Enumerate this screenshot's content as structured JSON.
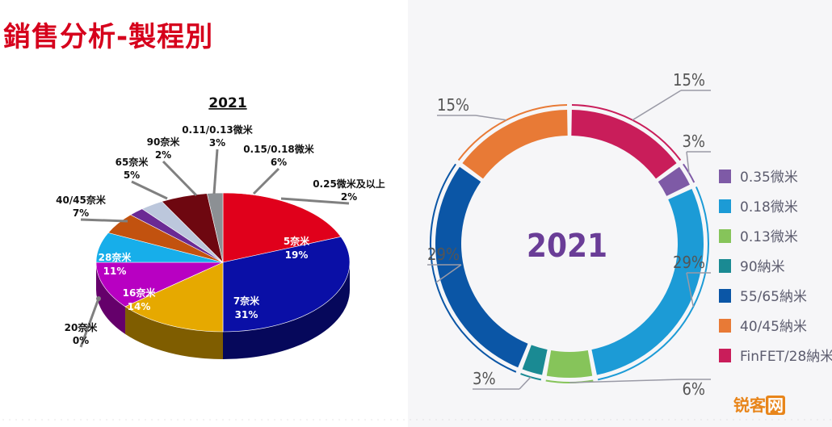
{
  "page_title": "銷售分析-製程別",
  "watermark": {
    "part1": "锐客",
    "part2": "网"
  },
  "chart_data": [
    {
      "type": "pie",
      "title": "2021",
      "categories": [
        "5奈米",
        "7奈米",
        "16奈米",
        "20奈米",
        "28奈米",
        "40/45奈米",
        "65奈米",
        "90奈米",
        "0.11/0.13微米",
        "0.15/0.18微米",
        "0.25微米及以上"
      ],
      "values": [
        19,
        31,
        14,
        0,
        11,
        7,
        5,
        2,
        3,
        6,
        2
      ],
      "value_labels": [
        "19%",
        "31%",
        "14%",
        "0%",
        "11%",
        "7%",
        "5%",
        "2%",
        "3%",
        "6%",
        "2%"
      ],
      "colors": [
        "#e0001b",
        "#0a0fa6",
        "#e6a900",
        "#cfcfcf",
        "#b800c2",
        "#17aeea",
        "#c2520f",
        "#6b2a94",
        "#bcc7dc",
        "#6e0710",
        "#8c9094"
      ],
      "legend": "none"
    },
    {
      "type": "pie",
      "title": "2021",
      "categories": [
        "FinFET/28納米",
        "0.35微米",
        "0.18微米",
        "0.13微米",
        "90納米",
        "55/65納米",
        "40/45納米"
      ],
      "values": [
        15,
        3,
        29,
        6,
        3,
        29,
        15
      ],
      "value_labels": [
        "15%",
        "3%",
        "29%",
        "6%",
        "3%",
        "29%",
        "15%"
      ],
      "colors": [
        "#c91d5a",
        "#7e5aa6",
        "#1c9bd6",
        "#86c45a",
        "#1a8a93",
        "#0b56a6",
        "#e87a36"
      ],
      "legend": "right"
    }
  ]
}
